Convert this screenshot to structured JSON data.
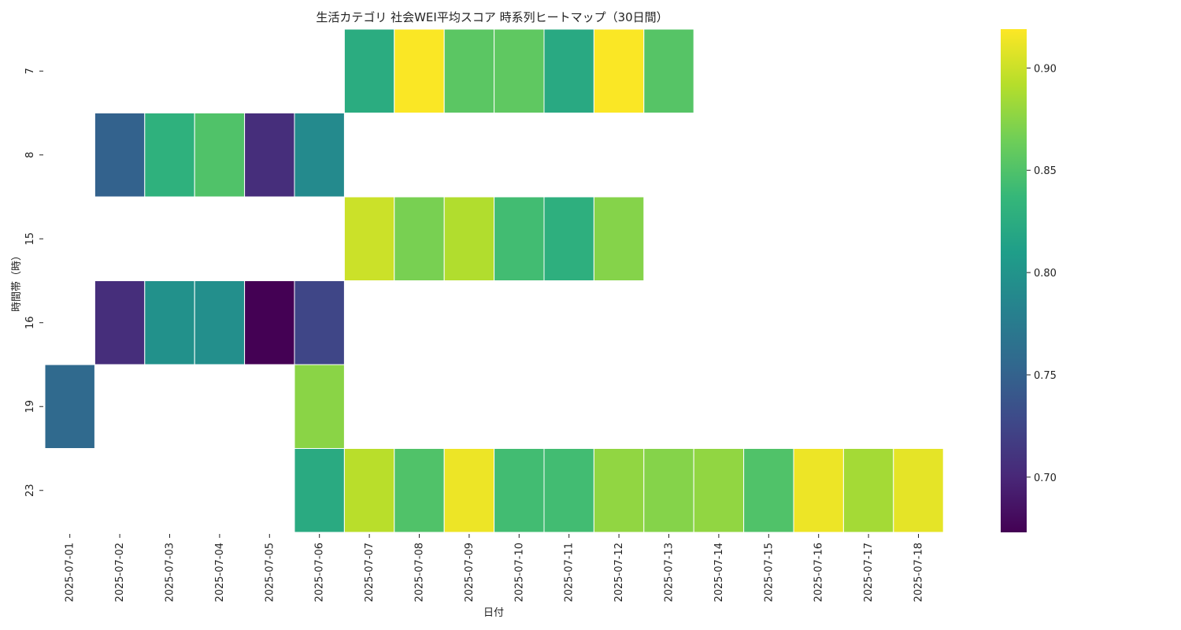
{
  "chart_data": {
    "type": "heatmap",
    "title": "生活カテゴリ 社会WEI平均スコア 時系列ヒートマップ（30日間）",
    "xlabel": "日付",
    "ylabel": "時間帯（時）",
    "x": [
      "2025-07-01",
      "2025-07-02",
      "2025-07-03",
      "2025-07-04",
      "2025-07-05",
      "2025-07-06",
      "2025-07-07",
      "2025-07-08",
      "2025-07-09",
      "2025-07-10",
      "2025-07-11",
      "2025-07-12",
      "2025-07-13",
      "2025-07-14",
      "2025-07-15",
      "2025-07-16",
      "2025-07-17",
      "2025-07-18"
    ],
    "y": [
      "7",
      "8",
      "15",
      "16",
      "19",
      "23"
    ],
    "values": [
      [
        null,
        null,
        null,
        null,
        null,
        null,
        0.825,
        0.918,
        0.855,
        0.857,
        0.822,
        0.918,
        0.853,
        null,
        null,
        null,
        null,
        null
      ],
      [
        null,
        0.75,
        0.83,
        0.85,
        0.705,
        0.79,
        null,
        null,
        null,
        null,
        null,
        null,
        null,
        null,
        null,
        null,
        null,
        null
      ],
      [
        null,
        null,
        null,
        null,
        null,
        null,
        0.9,
        0.868,
        0.89,
        0.843,
        0.828,
        0.873,
        null,
        null,
        null,
        null,
        null,
        null
      ],
      [
        null,
        0.705,
        0.797,
        0.795,
        0.673,
        0.725,
        null,
        null,
        null,
        null,
        null,
        null,
        null,
        null,
        null,
        null,
        null,
        null
      ],
      [
        0.757,
        null,
        null,
        null,
        null,
        0.875,
        null,
        null,
        null,
        null,
        null,
        null,
        null,
        null,
        null,
        null,
        null,
        null
      ],
      [
        null,
        null,
        null,
        null,
        null,
        0.823,
        0.893,
        0.85,
        0.913,
        0.843,
        0.843,
        0.878,
        0.873,
        0.878,
        0.85,
        0.913,
        0.885,
        0.91
      ]
    ],
    "colormap": "viridis",
    "vmin": 0.673,
    "vmax": 0.919,
    "colorbar_ticks": [
      "0.70",
      "0.75",
      "0.80",
      "0.85",
      "0.90"
    ]
  }
}
